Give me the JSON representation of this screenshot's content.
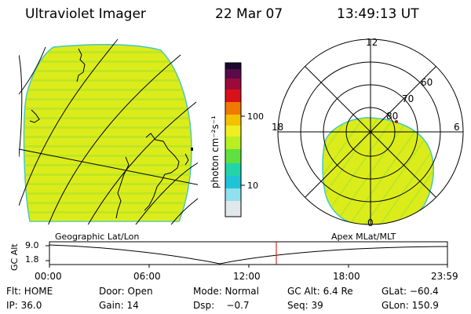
{
  "header": {
    "title": "Ultraviolet Imager",
    "date": "22 Mar 07",
    "time": "13:49:13 UT"
  },
  "colorbar": {
    "unit_label": "photon cm⁻²s⁻¹",
    "ticks": [
      "100",
      "10"
    ],
    "colors": [
      "#1a0a2e",
      "#5a0a4a",
      "#9a0a3a",
      "#d8101a",
      "#f07a00",
      "#f2c200",
      "#eeee22",
      "#b8ee22",
      "#60e040",
      "#22d4a8",
      "#20c4d8",
      "#90e0ee",
      "#e0e8ec"
    ]
  },
  "left_panel": {
    "label": "Geographic Lat/Lon",
    "fill_color": "#dcec1a",
    "border_color": "#40c8c8"
  },
  "right_panel": {
    "label": "Apex MLat/MLT",
    "mlt_labels": [
      "12",
      "18",
      "6",
      "0"
    ],
    "mlat_labels": [
      "60",
      "70",
      "80"
    ],
    "fill_color": "#dcec1a"
  },
  "timeline": {
    "y_axis_label": "GC Alt",
    "y_ticks": [
      "9.0",
      "1.8"
    ],
    "x_ticks": [
      "00:00",
      "06:00",
      "12:00",
      "18:00",
      "23:59"
    ],
    "marker_color": "#cc0000"
  },
  "info_rows": [
    [
      "Flt: HOME",
      "Door: Open",
      "Mode: Normal",
      "GC Alt: 6.4 Re",
      "GLat: −60.4"
    ],
    [
      "IP: 36.0",
      "Gain: 14",
      "Dsp:    −0.7",
      "Seq: 39",
      "GLon: 150.9"
    ]
  ]
}
